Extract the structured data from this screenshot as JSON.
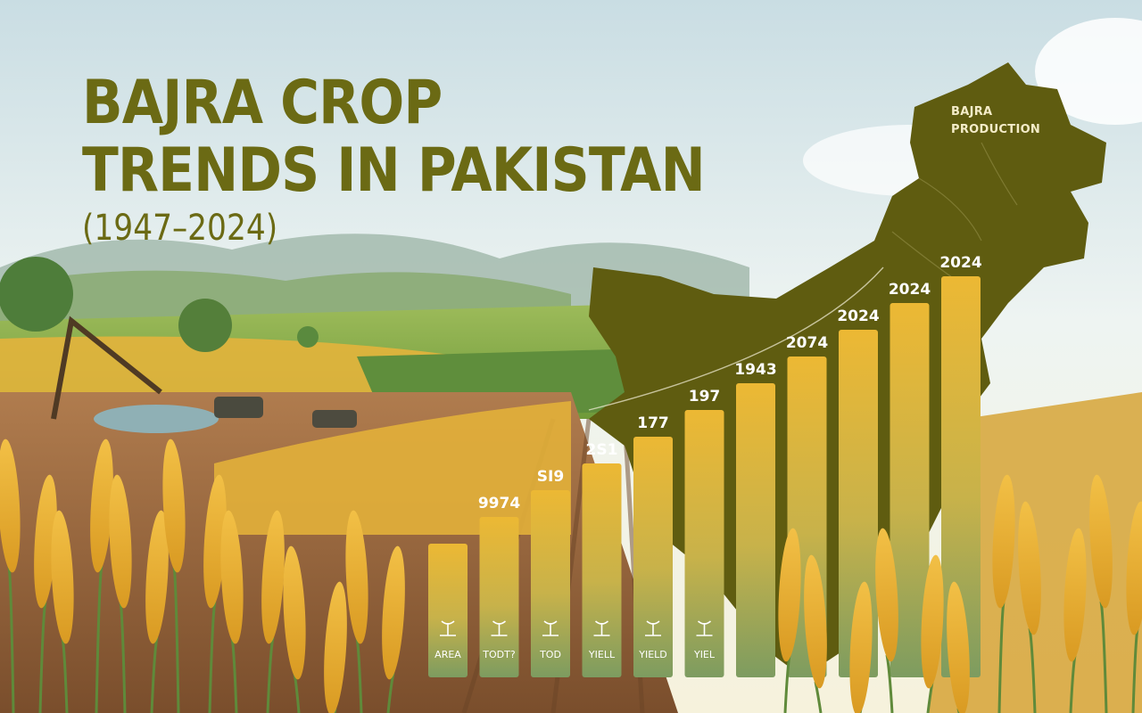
{
  "heading": {
    "line1": "BAJRA CROP",
    "line2": "TRENDS IN PAKISTAN",
    "subtitle": "(1947–2024)"
  },
  "map_label": "BAJRA\nPRODUCTION",
  "colors": {
    "title": "#6b6a14",
    "map": "#5f5c10",
    "bar_top": "#e8b432",
    "bar_bottom": "#7f9b5e",
    "sky": "#dbe8ec"
  },
  "chart_data": {
    "type": "bar",
    "categories": [
      "AREA",
      "TODT?",
      "TOD",
      "YIELL",
      "YIELD",
      "YIEL",
      "",
      "",
      "",
      "",
      ""
    ],
    "category_icons": [
      "sprout-icon",
      "stalks-icon",
      "seedling-icon",
      "cup-icon",
      "basket-icon",
      "cup-icon",
      "",
      "",
      "",
      "",
      ""
    ],
    "data_labels": [
      "",
      "9974",
      "SI9",
      "2S1",
      "177",
      "197",
      "1943",
      "2074",
      "2024",
      "2024",
      "2024"
    ],
    "values": [
      1,
      2,
      3,
      4,
      5,
      6,
      7,
      8,
      9,
      10,
      11
    ],
    "title": "",
    "xlabel": "",
    "ylabel": "",
    "ylim": [
      0,
      11
    ],
    "grid": false,
    "legend": "none"
  }
}
